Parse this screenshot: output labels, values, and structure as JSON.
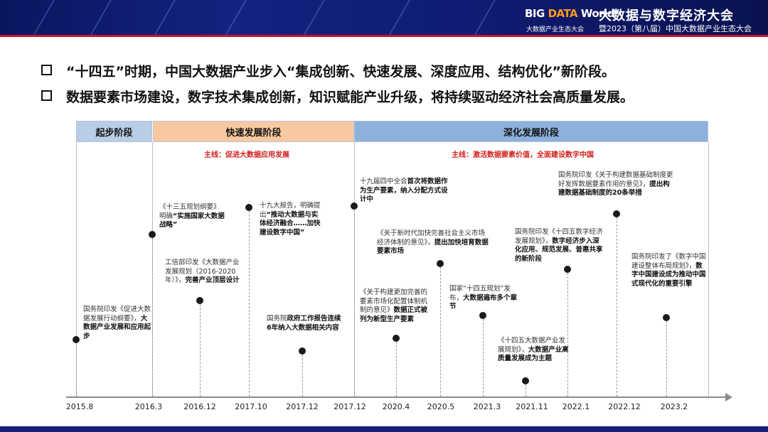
{
  "header": {
    "logo_text": "BIG DATA World",
    "logo_sub": "大数据产业生态大会",
    "title": "大数据与数字经济大会",
    "subtitle": "暨2023（第八届）中国大数据产业生态大会",
    "colors": {
      "banner": "#13237e",
      "stripe": "#c8102e"
    }
  },
  "bullets": [
    "“十四五”时期，中国大数据产业步入“集成创新、快速发展、深度应用、结构优化”新阶段。",
    "数据要素市场建设，数字技术集成创新，知识赋能产业升级，将持续驱动经济社会高质量发展。"
  ],
  "phases": [
    {
      "label": "起步阶段",
      "color": "#b9cde6"
    },
    {
      "label": "快速发展阶段",
      "color": "#f8c9a0"
    },
    {
      "label": "深化发展阶段",
      "color": "#8db1dd"
    }
  ],
  "main_lines": [
    "主线：促进大数据应用发展",
    "主线：激活数据要素价值，全面建设数字中国"
  ],
  "ticks": [
    "2015.8",
    "2016.3",
    "2016.12",
    "2017.10",
    "2017.12",
    "2017.12",
    "2020.4",
    "2020.5",
    "2021.3",
    "2021.11",
    "2022.1",
    "2022.12",
    "2023.2"
  ],
  "events": [
    {
      "date": "2015.8",
      "normal": "国务院印发《促进大数据发展行动纲要》，",
      "bold": "大数据产业发展和应用起步"
    },
    {
      "date": "2016.3",
      "normal": "《十三五规划纲要》明确",
      "bold": "“实施国家大数据战略”"
    },
    {
      "date": "2016.12",
      "normal": "工信部印发《大数据产业发展规划（2016-2020年）》，",
      "bold": "完善产业顶层设计"
    },
    {
      "date": "2017.10",
      "normal": "十九大报告，明确提出",
      "bold": "“推动大数据与实体经济融合……加快建设数字中国”"
    },
    {
      "date": "2017.12",
      "normal": "国务院",
      "bold": "政府工作报告连续6年纳入大数据相关内容"
    },
    {
      "date": "2017.12",
      "normal": "十九届四中全会",
      "bold": "首次将数据作为生产要素，纳入分配方式设计中"
    },
    {
      "date": "2020.4",
      "normal": "《关于构建更加完善的要素市场化配置体制机制的意见》",
      "bold": "数据正式被列为新型生产要素"
    },
    {
      "date": "2020.5",
      "normal": "《关于新时代加快完善社会主义市场经济体制的意见》，",
      "bold": "提出加快培育数据要素市场"
    },
    {
      "date": "2021.3",
      "normal": "国家“十四五规划”发布，",
      "bold": "大数据遍布多个章节"
    },
    {
      "date": "2021.11",
      "normal": "《十四五大数据产业发展规划》，",
      "bold": "大数据产业高质量发展成为主题"
    },
    {
      "date": "2022.1",
      "normal": "国务院印发《十四五数字经济发展规划》，",
      "bold": "数字经济步入深化应用、规范发展、普惠共享的新阶段"
    },
    {
      "date": "2022.12",
      "normal": "国务院印发《关于构建数据基础制度更好发挥数据要素作用的意见》，",
      "bold": "提出构建数据基础制度的20条举措"
    },
    {
      "date": "2023.2",
      "normal": "国务院印发了《数字中国建设整体布局规划》，",
      "bold": "数字中国建设成为推动中国式现代化的重要引擎"
    }
  ]
}
